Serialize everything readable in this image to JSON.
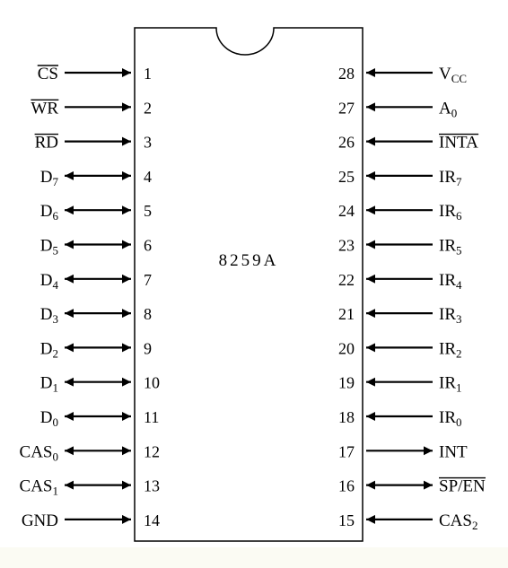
{
  "chip_label": "8259A",
  "colors": {
    "background": "#ffffff",
    "ink": "#000000",
    "bottom_strip": "#fbfbf3"
  },
  "left_pins": [
    {
      "num": "1",
      "name": "CS",
      "sub": "",
      "overbar": true,
      "dir": "in"
    },
    {
      "num": "2",
      "name": "WR",
      "sub": "",
      "overbar": true,
      "dir": "in"
    },
    {
      "num": "3",
      "name": "RD",
      "sub": "",
      "overbar": true,
      "dir": "in"
    },
    {
      "num": "4",
      "name": "D",
      "sub": "7",
      "overbar": false,
      "dir": "bi"
    },
    {
      "num": "5",
      "name": "D",
      "sub": "6",
      "overbar": false,
      "dir": "bi"
    },
    {
      "num": "6",
      "name": "D",
      "sub": "5",
      "overbar": false,
      "dir": "bi"
    },
    {
      "num": "7",
      "name": "D",
      "sub": "4",
      "overbar": false,
      "dir": "bi"
    },
    {
      "num": "8",
      "name": "D",
      "sub": "3",
      "overbar": false,
      "dir": "bi"
    },
    {
      "num": "9",
      "name": "D",
      "sub": "2",
      "overbar": false,
      "dir": "bi"
    },
    {
      "num": "10",
      "name": "D",
      "sub": "1",
      "overbar": false,
      "dir": "bi"
    },
    {
      "num": "11",
      "name": "D",
      "sub": "0",
      "overbar": false,
      "dir": "bi"
    },
    {
      "num": "12",
      "name": "CAS",
      "sub": "0",
      "overbar": false,
      "dir": "bi"
    },
    {
      "num": "13",
      "name": "CAS",
      "sub": "1",
      "overbar": false,
      "dir": "bi"
    },
    {
      "num": "14",
      "name": "GND",
      "sub": "",
      "overbar": false,
      "dir": "in"
    }
  ],
  "right_pins": [
    {
      "num": "28",
      "name": "V",
      "sub": "CC",
      "overbar": false,
      "dir": "in"
    },
    {
      "num": "27",
      "name": "A",
      "sub": "0",
      "overbar": false,
      "dir": "in"
    },
    {
      "num": "26",
      "name": "INTA",
      "sub": "",
      "overbar": true,
      "dir": "in"
    },
    {
      "num": "25",
      "name": "IR",
      "sub": "7",
      "overbar": false,
      "dir": "in"
    },
    {
      "num": "24",
      "name": "IR",
      "sub": "6",
      "overbar": false,
      "dir": "in"
    },
    {
      "num": "23",
      "name": "IR",
      "sub": "5",
      "overbar": false,
      "dir": "in"
    },
    {
      "num": "22",
      "name": "IR",
      "sub": "4",
      "overbar": false,
      "dir": "in"
    },
    {
      "num": "21",
      "name": "IR",
      "sub": "3",
      "overbar": false,
      "dir": "in"
    },
    {
      "num": "20",
      "name": "IR",
      "sub": "2",
      "overbar": false,
      "dir": "in"
    },
    {
      "num": "19",
      "name": "IR",
      "sub": "1",
      "overbar": false,
      "dir": "in"
    },
    {
      "num": "18",
      "name": "IR",
      "sub": "0",
      "overbar": false,
      "dir": "in"
    },
    {
      "num": "17",
      "name": "INT",
      "sub": "",
      "overbar": false,
      "dir": "out"
    },
    {
      "num": "16",
      "name": "SP/EN",
      "sub": "",
      "overbar": true,
      "dir": "bi"
    },
    {
      "num": "15",
      "name": "CAS",
      "sub": "2",
      "overbar": false,
      "dir": "in"
    }
  ]
}
